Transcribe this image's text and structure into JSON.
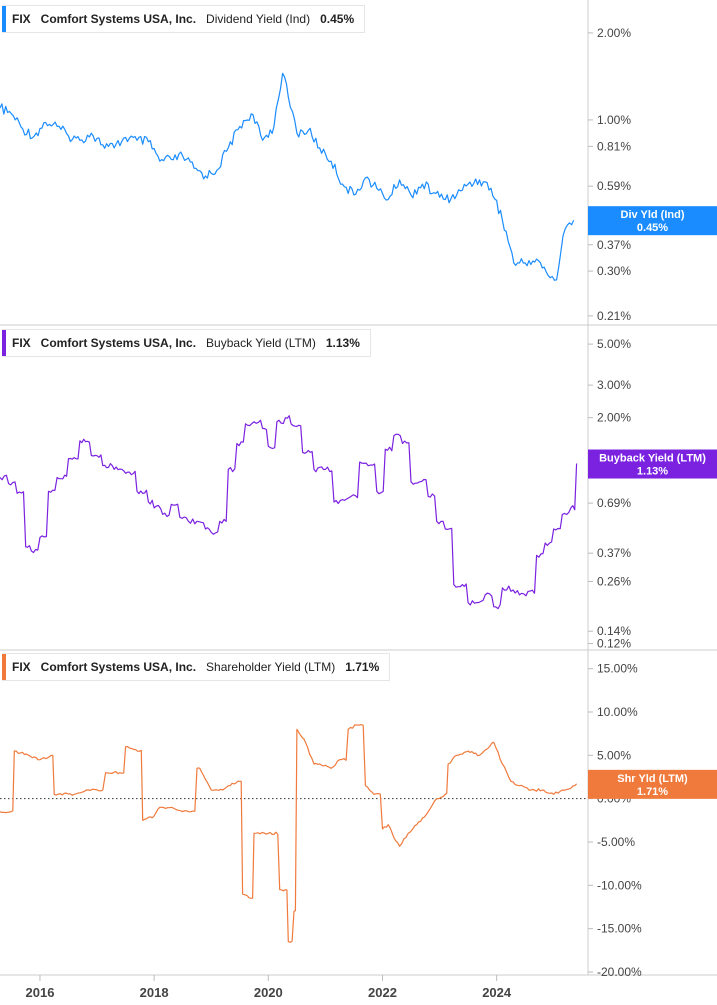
{
  "chart_data": [
    {
      "type": "line",
      "header": {
        "ticker": "FIX",
        "company": "Comfort Systems USA, Inc.",
        "metric": "Dividend Yield (Ind)",
        "value": "0.45%"
      },
      "badge": {
        "label": "Div Yld (Ind)",
        "value": "0.45%"
      },
      "color": "#1a8cff",
      "scale": "log",
      "ylim": [
        0.2,
        2.4
      ],
      "y_ticks": [
        2.0,
        1.0,
        0.81,
        0.59,
        0.37,
        0.3,
        0.21
      ],
      "y_tick_labels": [
        "2.00%",
        "1.00%",
        "0.81%",
        "0.59%",
        "0.37%",
        "0.30%",
        "0.21%"
      ],
      "x": [
        2015.3,
        2015.5,
        2015.7,
        2015.9,
        2016.1,
        2016.3,
        2016.5,
        2016.7,
        2016.9,
        2017.1,
        2017.3,
        2017.5,
        2017.7,
        2017.9,
        2018.1,
        2018.3,
        2018.5,
        2018.7,
        2018.9,
        2019.1,
        2019.3,
        2019.5,
        2019.7,
        2019.9,
        2020.1,
        2020.25,
        2020.35,
        2020.5,
        2020.7,
        2020.9,
        2021.1,
        2021.3,
        2021.5,
        2021.7,
        2021.9,
        2022.1,
        2022.3,
        2022.5,
        2022.7,
        2022.9,
        2023.1,
        2023.3,
        2023.5,
        2023.7,
        2023.9,
        2024.1,
        2024.3,
        2024.5,
        2024.7,
        2024.9,
        2025.05,
        2025.2,
        2025.35
      ],
      "values": [
        1.1,
        1.05,
        0.93,
        0.88,
        0.98,
        0.95,
        0.88,
        0.85,
        0.9,
        0.82,
        0.8,
        0.87,
        0.85,
        0.84,
        0.72,
        0.73,
        0.75,
        0.68,
        0.64,
        0.67,
        0.8,
        0.95,
        1.05,
        0.85,
        0.95,
        1.45,
        1.2,
        0.9,
        0.92,
        0.8,
        0.72,
        0.6,
        0.55,
        0.63,
        0.58,
        0.53,
        0.62,
        0.55,
        0.6,
        0.56,
        0.53,
        0.55,
        0.6,
        0.62,
        0.58,
        0.45,
        0.32,
        0.32,
        0.33,
        0.29,
        0.28,
        0.42,
        0.45
      ]
    },
    {
      "type": "line",
      "header": {
        "ticker": "FIX",
        "company": "Comfort Systems USA, Inc.",
        "metric": "Buyback Yield (LTM)",
        "value": "1.13%"
      },
      "badge": {
        "label": "Buyback Yield (LTM)",
        "value": "1.13%"
      },
      "color": "#7b22e0",
      "scale": "log",
      "ylim": [
        0.115,
        5.6
      ],
      "y_ticks": [
        5.0,
        3.0,
        2.0,
        0.69,
        0.37,
        0.26,
        0.14,
        0.12
      ],
      "y_tick_labels": [
        "5.00%",
        "3.00%",
        "2.00%",
        "0.69%",
        "0.37%",
        "0.26%",
        "0.14%",
        "0.12%"
      ],
      "x": [
        2015.3,
        2015.45,
        2015.6,
        2015.75,
        2015.85,
        2016.0,
        2016.15,
        2016.3,
        2016.5,
        2016.7,
        2016.9,
        2017.1,
        2017.3,
        2017.5,
        2017.7,
        2017.9,
        2018.0,
        2018.15,
        2018.3,
        2018.45,
        2018.6,
        2018.75,
        2018.9,
        2019.0,
        2019.15,
        2019.3,
        2019.45,
        2019.6,
        2019.75,
        2019.9,
        2020.0,
        2020.15,
        2020.3,
        2020.4,
        2020.6,
        2020.8,
        2021.0,
        2021.15,
        2021.3,
        2021.45,
        2021.6,
        2021.75,
        2021.9,
        2022.05,
        2022.2,
        2022.35,
        2022.5,
        2022.65,
        2022.8,
        2022.95,
        2023.1,
        2023.25,
        2023.4,
        2023.5,
        2023.65,
        2023.8,
        2023.95,
        2024.1,
        2024.25,
        2024.4,
        2024.55,
        2024.7,
        2024.85,
        2025.0,
        2025.15,
        2025.3,
        2025.4
      ],
      "values": [
        0.95,
        0.88,
        0.78,
        0.4,
        0.38,
        0.45,
        0.8,
        0.95,
        1.2,
        1.5,
        1.25,
        1.1,
        1.05,
        1.0,
        0.8,
        0.7,
        0.65,
        0.6,
        0.68,
        0.58,
        0.55,
        0.55,
        0.5,
        0.48,
        0.55,
        1.05,
        1.45,
        1.85,
        1.9,
        1.75,
        1.4,
        1.9,
        2.0,
        1.85,
        1.3,
        1.05,
        1.05,
        0.7,
        0.72,
        0.75,
        1.15,
        1.1,
        0.8,
        1.35,
        1.6,
        1.45,
        0.9,
        0.9,
        0.75,
        0.55,
        0.5,
        0.25,
        0.25,
        0.2,
        0.2,
        0.22,
        0.19,
        0.24,
        0.23,
        0.22,
        0.23,
        0.36,
        0.42,
        0.5,
        0.6,
        0.65,
        1.13
      ]
    },
    {
      "type": "line",
      "header": {
        "ticker": "FIX",
        "company": "Comfort Systems USA, Inc.",
        "metric": "Shareholder Yield (LTM)",
        "value": "1.71%"
      },
      "badge": {
        "label": "Shr Yld (LTM)",
        "value": "1.71%"
      },
      "color": "#f07a3c",
      "scale": "linear",
      "ylim": [
        -20,
        16
      ],
      "y_ticks": [
        15,
        10,
        5,
        0,
        -5,
        -10,
        -15,
        -20
      ],
      "y_tick_labels": [
        "15.00%",
        "10.00%",
        "5.00%",
        "0.00%",
        "-5.00%",
        "-10.00%",
        "-15.00%",
        "-20.00%"
      ],
      "zero_line": true,
      "x": [
        2015.3,
        2015.5,
        2015.55,
        2015.8,
        2016.0,
        2016.2,
        2016.25,
        2016.6,
        2016.85,
        2017.1,
        2017.15,
        2017.4,
        2017.5,
        2017.75,
        2017.8,
        2018.0,
        2018.1,
        2018.3,
        2018.5,
        2018.6,
        2018.75,
        2018.8,
        2019.0,
        2019.2,
        2019.3,
        2019.5,
        2019.55,
        2019.7,
        2019.75,
        2020.0,
        2020.2,
        2020.3,
        2020.35,
        2020.45,
        2020.5,
        2020.6,
        2020.65,
        2020.8,
        2020.9,
        2021.1,
        2021.25,
        2021.4,
        2021.55,
        2021.7,
        2021.85,
        2022.0,
        2022.1,
        2022.2,
        2022.3,
        2022.45,
        2022.6,
        2022.8,
        2022.95,
        2023.1,
        2023.15,
        2023.3,
        2023.5,
        2023.7,
        2023.95,
        2024.1,
        2024.25,
        2024.4,
        2024.6,
        2024.8,
        2025.0,
        2025.15,
        2025.3,
        2025.4
      ],
      "values": [
        -1.5,
        -1.5,
        5.5,
        5.0,
        4.5,
        5.0,
        0.5,
        0.5,
        1.0,
        1.0,
        3.0,
        3.0,
        6.0,
        5.5,
        -2.5,
        -2.0,
        -1.0,
        -1.0,
        -1.5,
        -1.5,
        3.5,
        3.5,
        1.0,
        1.0,
        1.5,
        2.0,
        -11.0,
        -11.5,
        -4.0,
        -4.0,
        -10.5,
        -10.5,
        -16.5,
        -13.0,
        8.0,
        7.0,
        6.5,
        4.0,
        4.0,
        3.5,
        4.5,
        8.0,
        8.5,
        1.5,
        0.5,
        -3.5,
        -3.0,
        -4.5,
        -5.5,
        -4.0,
        -3.0,
        -1.5,
        0.0,
        0.5,
        4.0,
        5.0,
        5.5,
        5.0,
        6.5,
        4.0,
        2.0,
        1.5,
        1.0,
        1.0,
        0.5,
        1.0,
        1.2,
        1.71
      ]
    }
  ],
  "x_axis": {
    "ticks": [
      2016,
      2018,
      2020,
      2022,
      2024
    ],
    "labels": [
      "2016",
      "2018",
      "2020",
      "2022",
      "2024"
    ],
    "range": [
      2015.3,
      2025.6
    ]
  }
}
